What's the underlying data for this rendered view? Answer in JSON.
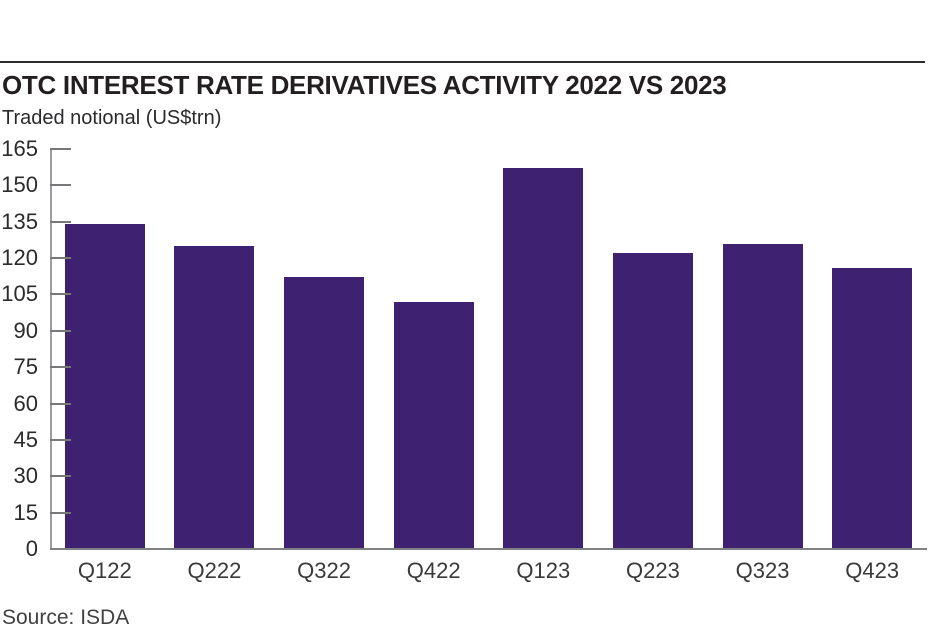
{
  "header": {
    "title": "OTC INTEREST RATE DERIVATIVES ACTIVITY 2022 VS 2023",
    "subtitle": "Traded notional (US$trn)"
  },
  "footer": {
    "source": "Source: ISDA"
  },
  "colors": {
    "bar": "#3e2271",
    "title_text": "#231f20",
    "axis_line": "#9b9da0",
    "baseline": "#7f8184",
    "tick_text": "#2b2a2c"
  },
  "chart_data": {
    "type": "bar",
    "title": "OTC INTEREST RATE DERIVATIVES ACTIVITY 2022 VS 2023",
    "subtitle": "Traded notional (US$trn)",
    "xlabel": "",
    "ylabel": "Traded notional (US$trn)",
    "categories": [
      "Q122",
      "Q222",
      "Q322",
      "Q422",
      "Q123",
      "Q223",
      "Q323",
      "Q423"
    ],
    "values": [
      134,
      125,
      112,
      102,
      157,
      122,
      126,
      116
    ],
    "ylim": [
      0,
      165
    ],
    "yticks": [
      0,
      15,
      30,
      45,
      60,
      75,
      90,
      105,
      120,
      135,
      150,
      165
    ],
    "grid": false,
    "legend_position": "none",
    "bar_color": "#3e2271",
    "source": "Source: ISDA"
  }
}
